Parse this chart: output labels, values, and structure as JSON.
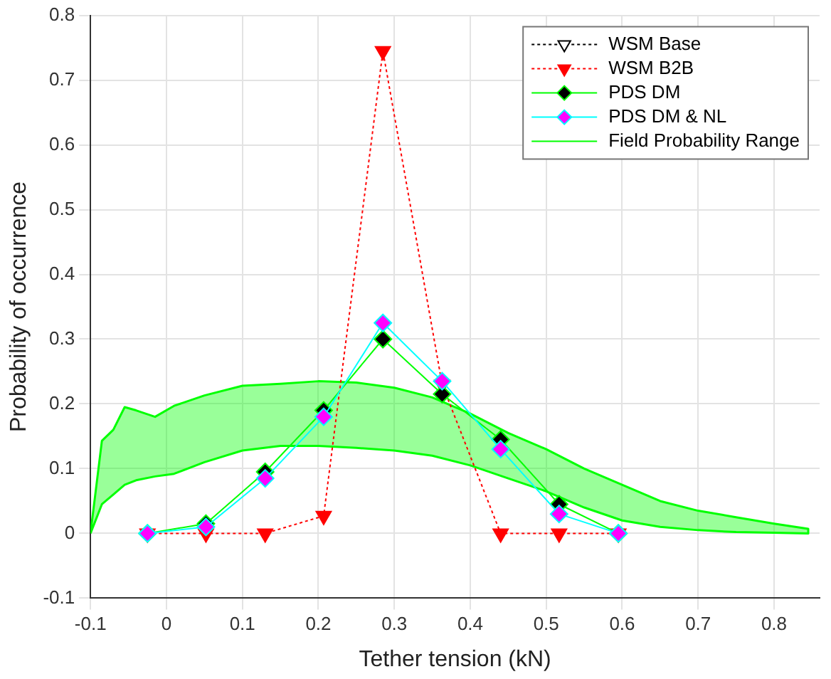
{
  "chart_data": {
    "type": "line",
    "xlabel": "Tether tension (kN)",
    "ylabel": "Probability of occurrence",
    "x": [
      -0.025,
      0.052,
      0.13,
      0.207,
      0.285,
      0.363,
      0.44,
      0.517,
      0.595
    ],
    "xlim": [
      -0.1,
      0.86
    ],
    "xticks": [
      -0.1,
      0,
      0.1,
      0.2,
      0.3,
      0.4,
      0.5,
      0.6,
      0.7,
      0.8
    ],
    "ylim": [
      -0.1,
      0.8
    ],
    "yticks": [
      -0.1,
      0,
      0.1,
      0.2,
      0.3,
      0.4,
      0.5,
      0.6,
      0.7,
      0.8
    ],
    "grid": true,
    "legend": "top right",
    "series": [
      {
        "name": "WSM Base",
        "color": "#000000",
        "line_style": "dotted",
        "marker": "triangle_down",
        "colors": [
          "#ffffff",
          "#ffffff",
          "#ffffff",
          "#ffffff",
          "#ffffff",
          "#ffffff",
          "#ffffff",
          "#ffffff",
          "#ffffff"
        ],
        "values": [
          null,
          null,
          null,
          null,
          null,
          null,
          null,
          null,
          null
        ]
      },
      {
        "name": "WSM B2B",
        "color": "#ff0000",
        "line_style": "dotted",
        "marker": "triangle_down",
        "colors": [
          "#ff0000",
          "#ff0000",
          "#ff0000",
          "#ff0000",
          "#ff0000",
          "#ff0000",
          "#ff0000",
          "#ff0000",
          "#ff0000"
        ],
        "values": [
          0,
          0,
          0,
          0.027,
          0.745,
          0.23,
          0,
          0,
          0
        ]
      },
      {
        "name": "PDS DM",
        "color": "#00ff00",
        "line_style": "solid",
        "marker": "diamond",
        "colors": [
          "#000000",
          "#000000",
          "#000000",
          "#000000",
          "#000000",
          "#000000",
          "#000000",
          "#000000",
          "#000000"
        ],
        "values": [
          0,
          0.015,
          0.095,
          0.19,
          0.3,
          0.215,
          0.145,
          0.045,
          0
        ]
      },
      {
        "name": "PDS DM & NL",
        "color": "#00ffff",
        "line_style": "solid",
        "marker": "diamond",
        "colors": [
          "#ff00ff",
          "#ff00ff",
          "#ff00ff",
          "#ff00ff",
          "#ff00ff",
          "#ff00ff",
          "#ff00ff",
          "#ff00ff",
          "#ff00ff"
        ],
        "values": [
          0,
          0.01,
          0.085,
          0.18,
          0.325,
          0.235,
          0.13,
          0.03,
          0
        ]
      },
      {
        "name": "Field Probability Range",
        "type": "area",
        "color": "#00ff00",
        "x": [
          -0.1,
          -0.085,
          -0.07,
          -0.055,
          -0.04,
          -0.015,
          0.01,
          0.05,
          0.1,
          0.15,
          0.2,
          0.25,
          0.3,
          0.35,
          0.4,
          0.45,
          0.5,
          0.55,
          0.6,
          0.65,
          0.7,
          0.75,
          0.8,
          0.845
        ],
        "values": [
          null,
          null,
          null,
          null,
          null,
          null,
          null,
          null,
          null,
          null,
          null,
          null,
          null,
          null,
          null,
          null,
          null,
          null,
          null,
          null,
          null,
          null,
          null,
          null
        ],
        "upper": [
          0,
          0.143,
          0.16,
          0.195,
          0.19,
          0.18,
          0.197,
          0.213,
          0.228,
          0.231,
          0.235,
          0.233,
          0.225,
          0.21,
          0.185,
          0.155,
          0.13,
          0.1,
          0.075,
          0.05,
          0.035,
          0.025,
          0.015,
          0.007
        ],
        "lower": [
          0,
          0.045,
          0.06,
          0.075,
          0.082,
          0.088,
          0.092,
          0.11,
          0.128,
          0.135,
          0.135,
          0.132,
          0.128,
          0.12,
          0.105,
          0.085,
          0.065,
          0.04,
          0.02,
          0.01,
          0.005,
          0.002,
          0.001,
          0
        ]
      }
    ]
  }
}
